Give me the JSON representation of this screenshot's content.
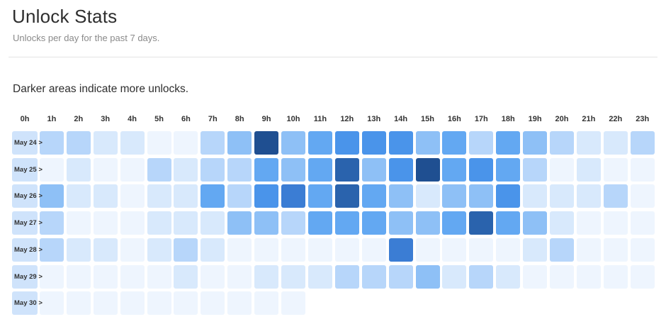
{
  "header": {
    "title": "Unlock Stats",
    "subtitle": "Unlocks per day for the past 7 days."
  },
  "note": "Darker areas indicate more unlocks.",
  "hours": [
    "0h",
    "1h",
    "2h",
    "3h",
    "4h",
    "5h",
    "6h",
    "7h",
    "8h",
    "9h",
    "10h",
    "11h",
    "12h",
    "13h",
    "14h",
    "15h",
    "16h",
    "17h",
    "18h",
    "19h",
    "20h",
    "21h",
    "22h",
    "23h"
  ],
  "colors": [
    "#eef5fe",
    "#d8e9fc",
    "#b7d6fa",
    "#8ec0f6",
    "#63a8f2",
    "#4a94ea",
    "#3b7dd4",
    "#2a63ad",
    "#1f4f91"
  ],
  "days": [
    {
      "label": "May 24 >",
      "levels": [
        0,
        2,
        2,
        1,
        1,
        0,
        0,
        2,
        3,
        8,
        3,
        4,
        5,
        5,
        5,
        3,
        4,
        2,
        4,
        3,
        2,
        1,
        1,
        2
      ]
    },
    {
      "label": "May 25 >",
      "levels": [
        0,
        0,
        1,
        0,
        0,
        2,
        1,
        2,
        2,
        4,
        3,
        4,
        7,
        3,
        5,
        8,
        4,
        5,
        4,
        2,
        0,
        1,
        0,
        0
      ]
    },
    {
      "label": "May 26 >",
      "levels": [
        0,
        3,
        1,
        1,
        0,
        1,
        1,
        4,
        2,
        5,
        6,
        4,
        7,
        4,
        3,
        1,
        3,
        3,
        5,
        1,
        1,
        1,
        2,
        0
      ]
    },
    {
      "label": "May 27 >",
      "levels": [
        0,
        2,
        0,
        0,
        0,
        1,
        1,
        1,
        3,
        3,
        2,
        4,
        4,
        4,
        3,
        3,
        4,
        7,
        4,
        3,
        1,
        0,
        0,
        0
      ]
    },
    {
      "label": "May 28 >",
      "levels": [
        0,
        2,
        1,
        1,
        0,
        1,
        2,
        1,
        0,
        0,
        0,
        0,
        0,
        0,
        6,
        0,
        0,
        0,
        0,
        1,
        2,
        0,
        0,
        0
      ]
    },
    {
      "label": "May 29 >",
      "levels": [
        0,
        0,
        0,
        0,
        0,
        0,
        1,
        0,
        0,
        1,
        1,
        1,
        2,
        2,
        2,
        3,
        1,
        2,
        1,
        0,
        0,
        0,
        0,
        0
      ]
    },
    {
      "label": "May 30 >",
      "levels": [
        0,
        0,
        0,
        0,
        0,
        0,
        0,
        0,
        0,
        0,
        0
      ]
    }
  ]
}
